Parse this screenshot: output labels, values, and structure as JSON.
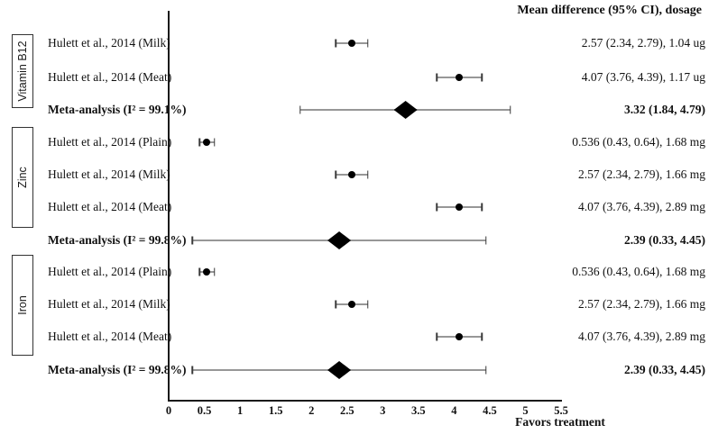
{
  "chart_data": {
    "type": "forest",
    "value_column_header": "Mean difference (95% CI), dosage",
    "xlabel": "Favors treatment",
    "xlim": [
      0,
      5.5
    ],
    "x_tick_labels": [
      "0",
      "0.5",
      "1",
      "1.5",
      "2",
      "2.5",
      "3",
      "3.5",
      "4",
      "4.5",
      "5",
      "5.5"
    ],
    "x_tick_values": [
      0,
      0.5,
      1,
      1.5,
      2,
      2.5,
      3,
      3.5,
      4,
      4.5,
      5,
      5.5
    ],
    "grid": false,
    "groups": [
      {
        "name": "Vitamin B12",
        "rows": [
          {
            "kind": "study",
            "label": "Hulett et al., 2014 (Milk)",
            "mean": 2.57,
            "ci_low": 2.34,
            "ci_high": 2.79,
            "value_text": "2.57 (2.34, 2.79), 1.04 ug"
          },
          {
            "kind": "study",
            "label": "Hulett et al., 2014 (Meat)",
            "mean": 4.07,
            "ci_low": 3.76,
            "ci_high": 4.39,
            "value_text": "4.07 (3.76, 4.39), 1.17 ug"
          },
          {
            "kind": "meta",
            "label": "Meta-analysis (I² = 99.1%)",
            "mean": 3.32,
            "ci_low": 1.84,
            "ci_high": 4.79,
            "value_text": "3.32 (1.84, 4.79)"
          }
        ]
      },
      {
        "name": "Zinc",
        "rows": [
          {
            "kind": "study",
            "label": "Hulett et al., 2014 (Plain)",
            "mean": 0.536,
            "ci_low": 0.43,
            "ci_high": 0.64,
            "value_text": "0.536 (0.43, 0.64), 1.68 mg"
          },
          {
            "kind": "study",
            "label": "Hulett et al., 2014 (Milk)",
            "mean": 2.57,
            "ci_low": 2.34,
            "ci_high": 2.79,
            "value_text": "2.57 (2.34, 2.79), 1.66 mg"
          },
          {
            "kind": "study",
            "label": "Hulett et al., 2014 (Meat)",
            "mean": 4.07,
            "ci_low": 3.76,
            "ci_high": 4.39,
            "value_text": "4.07 (3.76, 4.39), 2.89 mg"
          },
          {
            "kind": "meta",
            "label": "Meta-analysis (I² = 99.8%)",
            "mean": 2.39,
            "ci_low": 0.33,
            "ci_high": 4.45,
            "value_text": "2.39 (0.33, 4.45)"
          }
        ]
      },
      {
        "name": "Iron",
        "rows": [
          {
            "kind": "study",
            "label": "Hulett et al., 2014 (Plain)",
            "mean": 0.536,
            "ci_low": 0.43,
            "ci_high": 0.64,
            "value_text": "0.536 (0.43, 0.64), 1.68 mg"
          },
          {
            "kind": "study",
            "label": "Hulett et al., 2014 (Milk)",
            "mean": 2.57,
            "ci_low": 2.34,
            "ci_high": 2.79,
            "value_text": "2.57 (2.34, 2.79), 1.66 mg"
          },
          {
            "kind": "study",
            "label": "Hulett et al., 2014 (Meat)",
            "mean": 4.07,
            "ci_low": 3.76,
            "ci_high": 4.39,
            "value_text": "4.07 (3.76, 4.39), 2.89 mg"
          },
          {
            "kind": "meta",
            "label": "Meta-analysis (I² = 99.8%)",
            "mean": 2.39,
            "ci_low": 0.33,
            "ci_high": 4.45,
            "value_text": "2.39 (0.33, 4.45)"
          }
        ]
      }
    ]
  }
}
